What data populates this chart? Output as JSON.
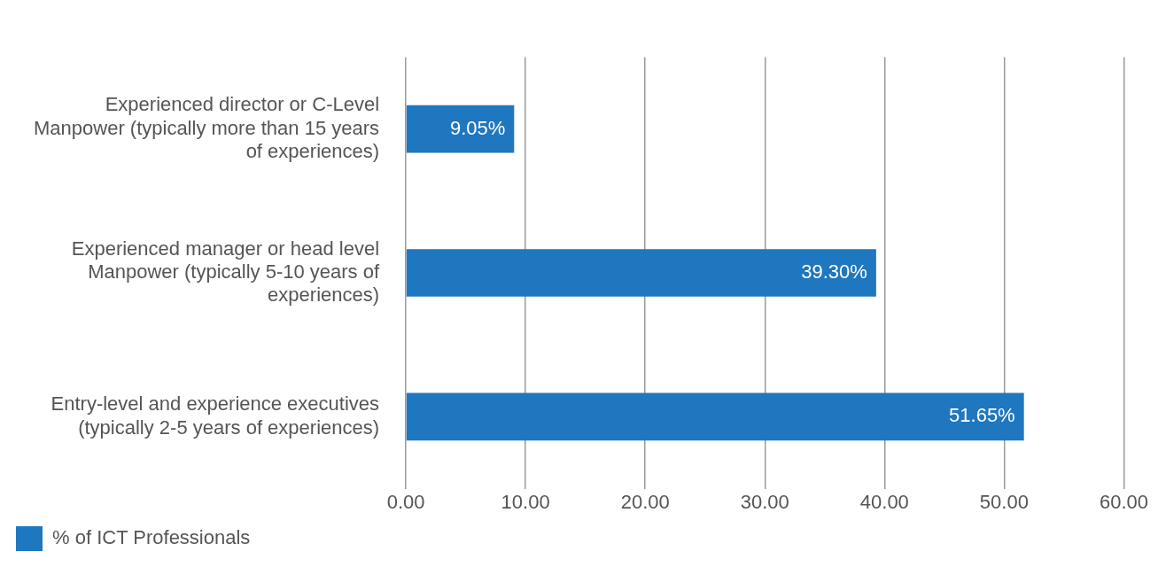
{
  "chart_data": {
    "type": "bar",
    "orientation": "horizontal",
    "categories": [
      "Experienced director or C-Level Manpower (typically more than 15 years of experiences)",
      "Experienced manager or head level Manpower (typically 5-10 years of experiences)",
      "Entry-level and experience executives (typically 2-5 years of experiences)"
    ],
    "series": [
      {
        "name": "% of ICT Professionals",
        "color": "#1f77bf",
        "values": [
          9.05,
          39.3,
          51.65
        ],
        "value_labels": [
          "9.05%",
          "39.30%",
          "51.65%"
        ]
      }
    ],
    "xlim": [
      0,
      60
    ],
    "xticks": [
      {
        "value": 0,
        "label": "0.00"
      },
      {
        "value": 10,
        "label": "10.00"
      },
      {
        "value": 20,
        "label": "20.00"
      },
      {
        "value": 30,
        "label": "30.00"
      },
      {
        "value": 40,
        "label": "40.00"
      },
      {
        "value": 50,
        "label": "50.00"
      },
      {
        "value": 60,
        "label": "60.00"
      }
    ],
    "grid": "x",
    "legend": "bottom left"
  }
}
